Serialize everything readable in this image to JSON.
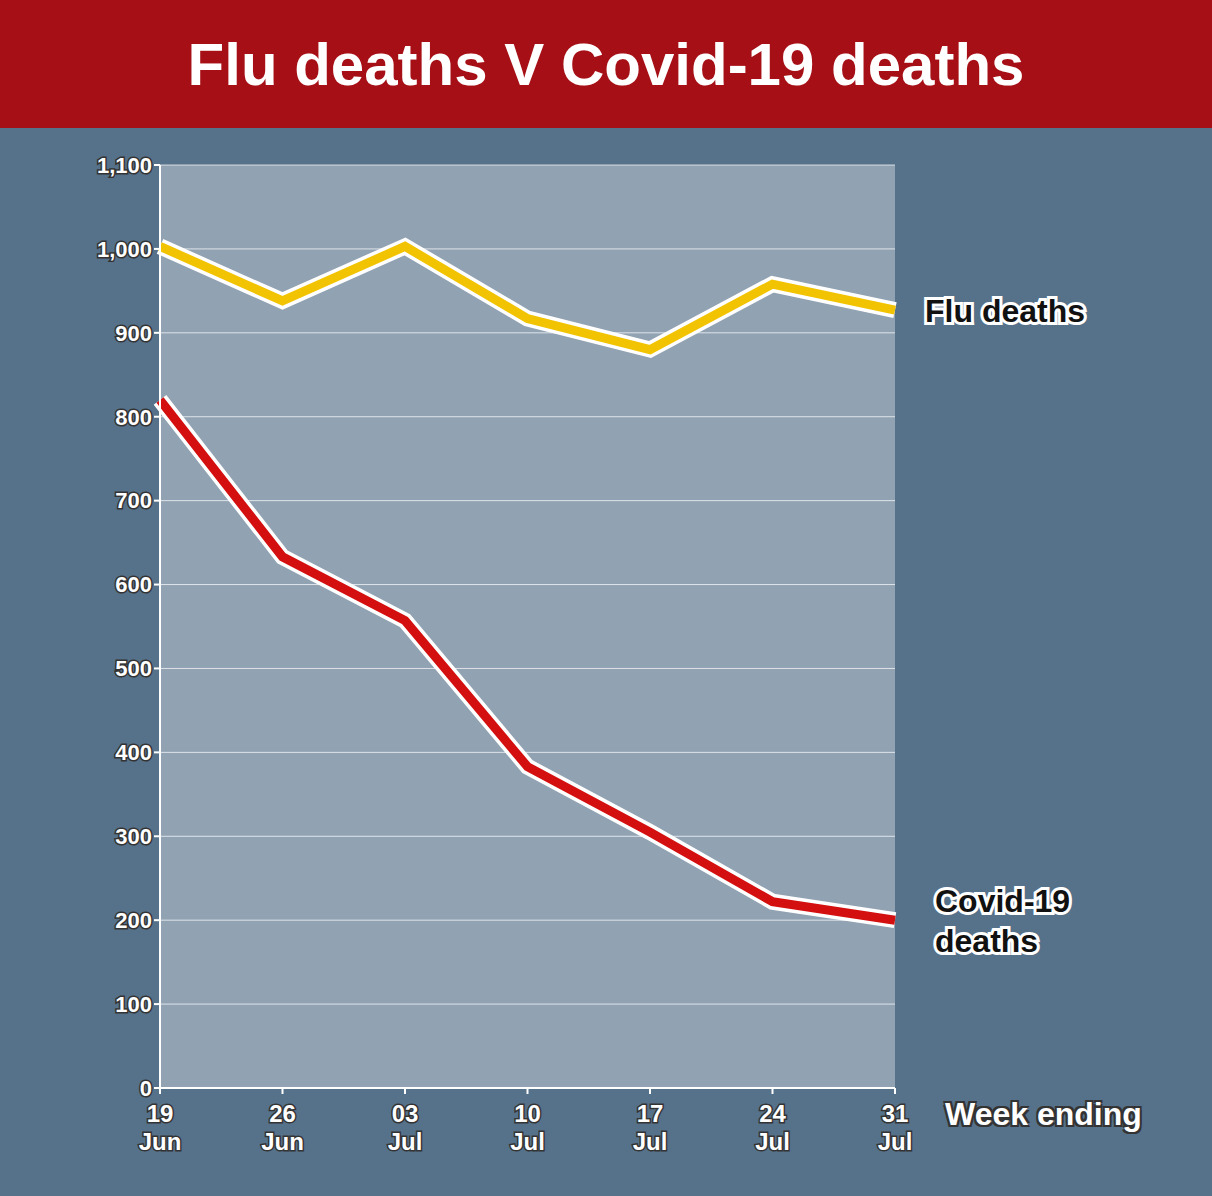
{
  "chart_data": {
    "type": "line",
    "title": "Flu deaths V Covid-19 deaths",
    "x_label": "Week ending",
    "categories": [
      "19 Jun",
      "26 Jun",
      "03 Jul",
      "10 Jul",
      "17 Jul",
      "24 Jul",
      "31 Jul"
    ],
    "series": [
      {
        "name": "Flu deaths",
        "color": "#f2c300",
        "values": [
          1003,
          938,
          1003,
          917,
          880,
          958,
          927
        ]
      },
      {
        "name": "Covid-19 deaths",
        "color": "#d40f0f",
        "values": [
          820,
          633,
          557,
          383,
          305,
          222,
          200
        ]
      }
    ],
    "ylim": [
      0,
      1100
    ],
    "yticks": [
      0,
      100,
      200,
      300,
      400,
      500,
      600,
      700,
      800,
      900,
      {
        "value": 1000,
        "label": "1,000"
      },
      {
        "value": 1100,
        "label": "1,100"
      }
    ],
    "grid": true
  }
}
